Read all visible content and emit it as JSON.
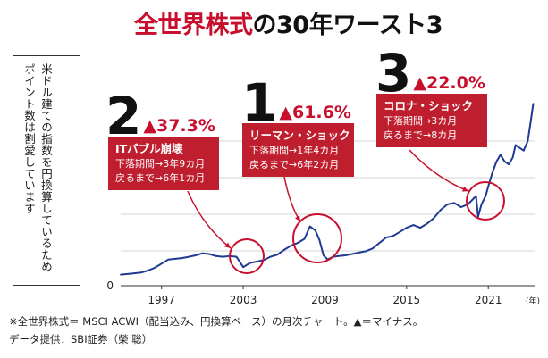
{
  "title": {
    "red": "全世界株式",
    "black": "の30年ワースト3"
  },
  "note_lines": [
    "米ドル建ての指数を円換算しているため",
    "ポイント数は割愛しています"
  ],
  "ranks": [
    {
      "num": "2",
      "pct": "▲37.3%",
      "head": "ITバブル崩壊",
      "line1": "下落期間→3年9カ月",
      "line2": "戻るまで→6年1カ月"
    },
    {
      "num": "1",
      "pct": "▲61.6%",
      "head": "リーマン・ショック",
      "line1": "下落期間→1年4カ月",
      "line2": "戻るまで→6年2カ月"
    },
    {
      "num": "3",
      "pct": "▲22.0%",
      "head": "コロナ・ショック",
      "line1": "下落期間→3カ月",
      "line2": "戻るまで→8カ月"
    }
  ],
  "footnote": "※全世界株式＝ MSCI ACWI（配当込み、円換算ベース）の月次チャート。▲＝マイナス。",
  "credit": "データ提供：SBI証券（榮 聡）",
  "colors": {
    "accent": "#c8102e",
    "callout": "#bf1e2e",
    "line": "#1f3a93"
  },
  "chart_data": {
    "type": "line",
    "x_ticks": [
      "1997",
      "2003",
      "2009",
      "2015",
      "2021"
    ],
    "x_unit": "(年)",
    "y_ticks": [
      "0"
    ],
    "grid": "horizontal",
    "series": [
      {
        "x": [
          1994.0,
          1994.5,
          1995.0,
          1995.5,
          1996.0,
          1996.5,
          1997.0,
          1997.5,
          1998.0,
          1998.5,
          1999.0,
          1999.5,
          2000.0,
          2000.5,
          2001.0,
          2001.5,
          2002.0,
          2002.5,
          2003.0,
          2003.5,
          2004.0,
          2004.5,
          2005.0,
          2005.5,
          2006.0,
          2006.5,
          2007.0,
          2007.5,
          2007.9,
          2008.3,
          2008.6,
          2008.9,
          2009.2,
          2009.6,
          2010.0,
          2010.5,
          2011.0,
          2011.5,
          2012.0,
          2012.5,
          2013.0,
          2013.5,
          2014.0,
          2014.5,
          2015.0,
          2015.5,
          2016.0,
          2016.5,
          2017.0,
          2017.5,
          2018.0,
          2018.5,
          2019.0,
          2019.5,
          2019.9,
          2020.1,
          2020.25,
          2020.5,
          2020.8,
          2021.0,
          2021.3,
          2021.6,
          2021.9,
          2022.2,
          2022.5,
          2022.8,
          2023.0,
          2023.3,
          2023.6,
          2023.9,
          2024.1,
          2024.3
        ],
        "y": [
          0.8,
          0.85,
          0.9,
          0.95,
          1.1,
          1.3,
          1.6,
          1.9,
          1.95,
          2.0,
          2.1,
          2.2,
          2.35,
          2.3,
          2.15,
          2.1,
          2.15,
          2.1,
          1.35,
          1.65,
          1.75,
          1.85,
          2.1,
          2.25,
          2.6,
          2.9,
          3.1,
          3.4,
          4.3,
          4.0,
          3.3,
          2.2,
          1.9,
          2.1,
          2.15,
          2.2,
          2.3,
          2.4,
          2.5,
          2.7,
          3.1,
          3.5,
          3.6,
          3.9,
          4.2,
          4.4,
          4.2,
          4.5,
          4.9,
          5.5,
          5.9,
          6.0,
          5.7,
          5.9,
          6.3,
          6.5,
          5.0,
          5.9,
          6.5,
          7.2,
          8.2,
          9.0,
          9.5,
          9.0,
          8.8,
          9.3,
          10.2,
          10.0,
          9.8,
          10.5,
          11.8,
          13.2
        ]
      }
    ]
  }
}
